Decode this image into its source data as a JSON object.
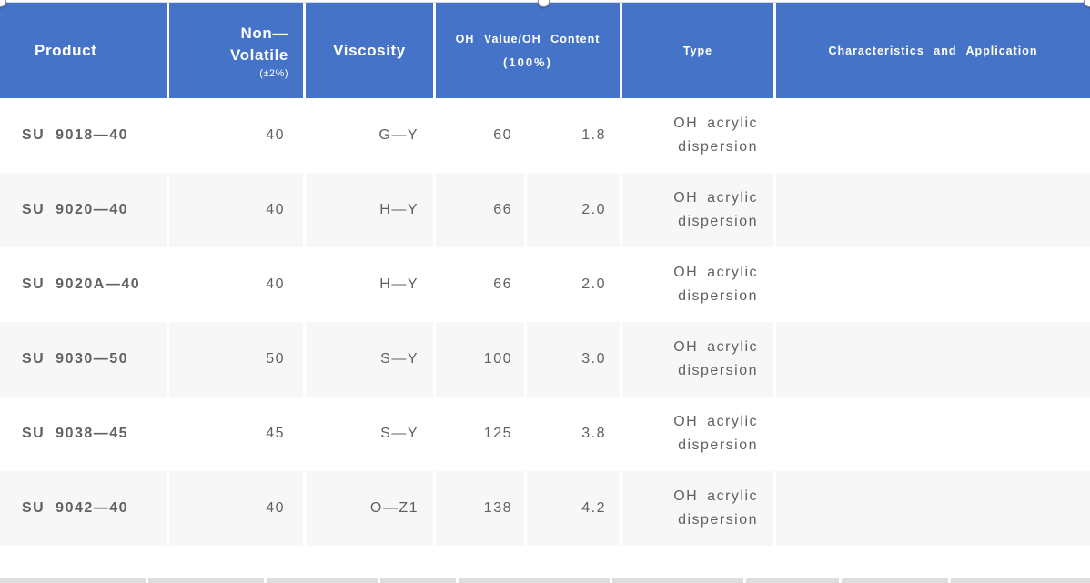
{
  "colors": {
    "header_bg": "#4573c7",
    "row_alt_bg": "#f7f7f8",
    "next_table_edge": "#dedede",
    "product_text": "#3d3d3d",
    "value_text": "#616161"
  },
  "table": {
    "header": {
      "product": "Product",
      "non_volatile": "Non—\nVolatile",
      "non_volatile_sub": "(±2%)",
      "viscosity": "Viscosity",
      "oh": "OH Value/OH Content",
      "oh_sub": "(100%)",
      "type": "Type",
      "characteristics": "Characteristics and Application"
    },
    "rows": [
      {
        "product": "SU 9018—40",
        "non_volatile": "40",
        "viscosity": "G—Y",
        "oh_value": "60",
        "oh_content": "1.8",
        "type": "OH acrylic dispersion",
        "characteristics": ""
      },
      {
        "product": "SU 9020—40",
        "non_volatile": "40",
        "viscosity": "H—Y",
        "oh_value": "66",
        "oh_content": "2.0",
        "type": "OH acrylic dispersion",
        "characteristics": ""
      },
      {
        "product": "SU 9020A—40",
        "non_volatile": "40",
        "viscosity": "H—Y",
        "oh_value": "66",
        "oh_content": "2.0",
        "type": "OH acrylic dispersion",
        "characteristics": ""
      },
      {
        "product": "SU 9030—50",
        "non_volatile": "50",
        "viscosity": "S—Y",
        "oh_value": "100",
        "oh_content": "3.0",
        "type": "OH acrylic dispersion",
        "characteristics": ""
      },
      {
        "product": "SU 9038—45",
        "non_volatile": "45",
        "viscosity": "S—Y",
        "oh_value": "125",
        "oh_content": "3.8",
        "type": "OH acrylic dispersion",
        "characteristics": ""
      },
      {
        "product": "SU 9042—40",
        "non_volatile": "40",
        "viscosity": "O—Z1",
        "oh_value": "138",
        "oh_content": "4.2",
        "type": "OH acrylic dispersion",
        "characteristics": ""
      }
    ]
  }
}
